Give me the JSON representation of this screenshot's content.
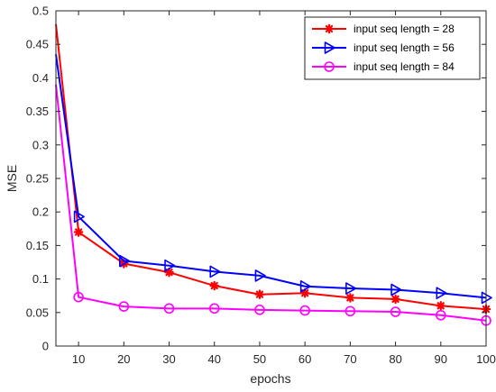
{
  "chart_data": {
    "type": "line",
    "title": "",
    "xlabel": "epochs",
    "ylabel": "MSE",
    "xlim": [
      5,
      100
    ],
    "ylim": [
      0,
      0.5
    ],
    "xticks": [
      10,
      20,
      30,
      40,
      50,
      60,
      70,
      80,
      90,
      100
    ],
    "xtick_labels": [
      "10",
      "20",
      "30",
      "40",
      "50",
      "60",
      "70",
      "80",
      "90",
      "100"
    ],
    "yticks": [
      0,
      0.05,
      0.1,
      0.15,
      0.2,
      0.25,
      0.3,
      0.35,
      0.4,
      0.45,
      0.5
    ],
    "ytick_labels": [
      "0",
      "0.05",
      "0.1",
      "0.15",
      "0.2",
      "0.25",
      "0.3",
      "0.35",
      "0.4",
      "0.45",
      "0.5"
    ],
    "grid": false,
    "legend_position": "top-right",
    "x": [
      5,
      10,
      20,
      30,
      40,
      50,
      60,
      70,
      80,
      90,
      100
    ],
    "series": [
      {
        "name": "input seq length = 28",
        "color": "#ff0000",
        "marker": "asterisk",
        "values": [
          0.48,
          0.17,
          0.123,
          0.11,
          0.09,
          0.077,
          0.079,
          0.072,
          0.07,
          0.06,
          0.055
        ]
      },
      {
        "name": "input seq length = 56",
        "color": "#0000ff",
        "marker": "triangle-right",
        "values": [
          0.435,
          0.193,
          0.127,
          0.12,
          0.111,
          0.105,
          0.089,
          0.086,
          0.084,
          0.079,
          0.072
        ]
      },
      {
        "name": "input seq length = 84",
        "color": "#ff00ff",
        "marker": "circle",
        "values": [
          0.39,
          0.073,
          0.059,
          0.056,
          0.056,
          0.054,
          0.053,
          0.052,
          0.051,
          0.046,
          0.038
        ]
      }
    ]
  }
}
